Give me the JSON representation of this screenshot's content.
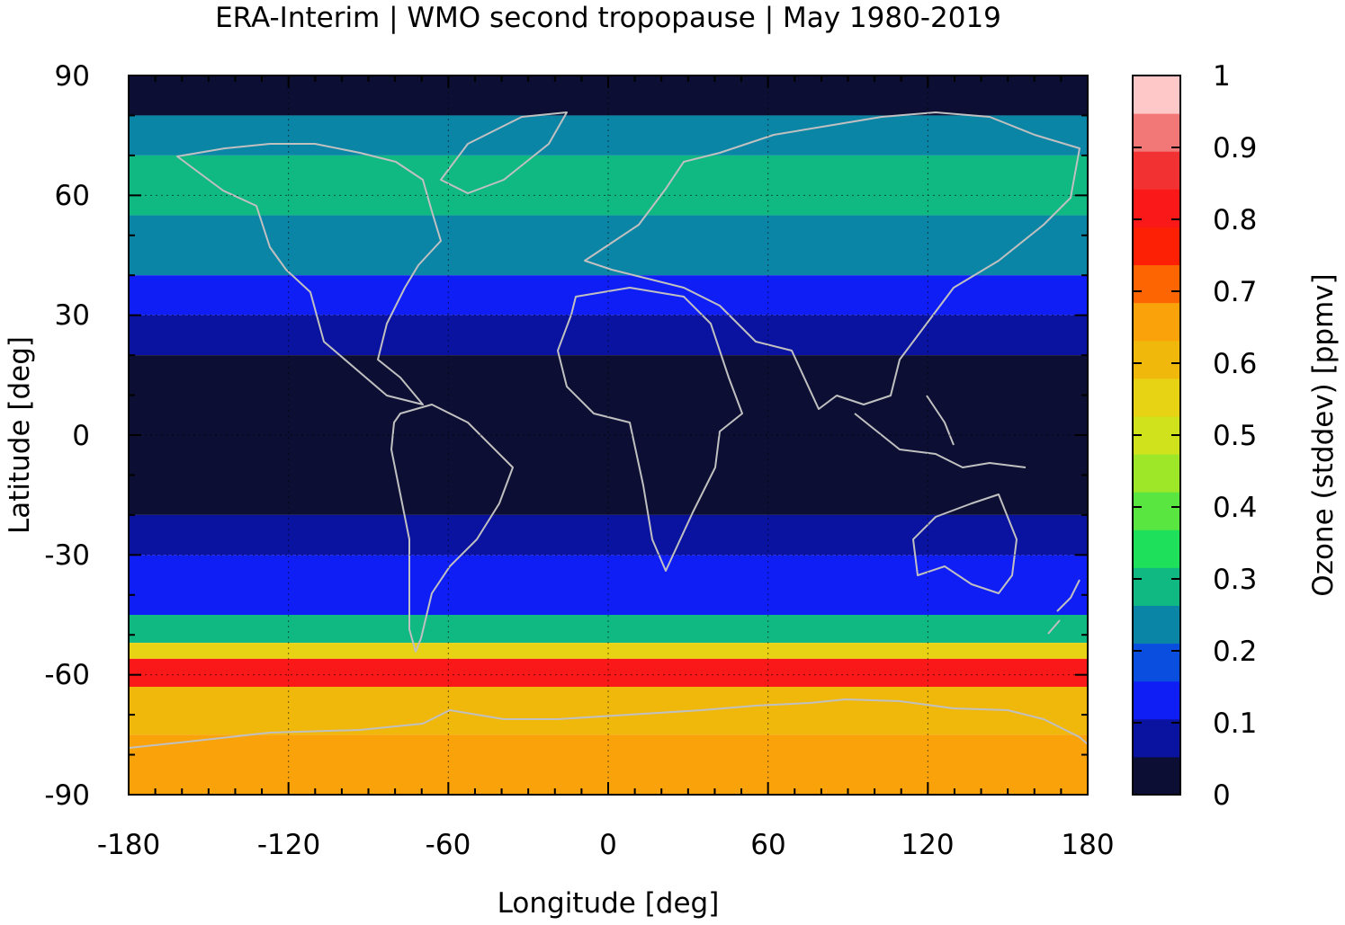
{
  "chart_data": {
    "type": "heatmap",
    "title": "ERA-Interim | WMO second tropopause | May 1980-2019",
    "xlabel": "Longitude [deg]",
    "ylabel": "Latitude [deg]",
    "xlim": [
      -180,
      180
    ],
    "ylim": [
      -90,
      90
    ],
    "xticks": [
      "-180",
      "-120",
      "-60",
      "0",
      "60",
      "120",
      "180"
    ],
    "yticks": [
      "90",
      "60",
      "30",
      "0",
      "-30",
      "-60",
      "-90"
    ],
    "grid": true,
    "colorbar": {
      "label": "Ozone (stddev) [ppmv]",
      "range": [
        0,
        1
      ],
      "tick_labels": [
        "1",
        "0.9",
        "0.8",
        "0.7",
        "0.6",
        "0.5",
        "0.4",
        "0.3",
        "0.2",
        "0.1",
        "0"
      ],
      "levels": [
        "#0c0f33",
        "#0a12a0",
        "#0f1ef5",
        "#0a4ee0",
        "#0a85a6",
        "#10b882",
        "#1ee05a",
        "#5ae640",
        "#9ee628",
        "#cfe21c",
        "#e8d214",
        "#f1b80c",
        "#f9a20a",
        "#fd6402",
        "#fd2004",
        "#fa1818",
        "#f23232",
        "#f27878",
        "#ffc8c8"
      ],
      "placement": "right"
    },
    "lat_bands": [
      {
        "lat": [
          80,
          90
        ],
        "value": 0.02
      },
      {
        "lat": [
          70,
          80
        ],
        "value": 0.22
      },
      {
        "lat": [
          55,
          70
        ],
        "value": 0.3
      },
      {
        "lat": [
          40,
          55
        ],
        "value": 0.25
      },
      {
        "lat": [
          30,
          40
        ],
        "value": 0.15
      },
      {
        "lat": [
          20,
          30
        ],
        "value": 0.1
      },
      {
        "lat": [
          -20,
          20
        ],
        "value": 0.02
      },
      {
        "lat": [
          -30,
          -20
        ],
        "value": 0.07
      },
      {
        "lat": [
          -45,
          -30
        ],
        "value": 0.12
      },
      {
        "lat": [
          -52,
          -45
        ],
        "value": 0.3
      },
      {
        "lat": [
          -56,
          -52
        ],
        "value": 0.55
      },
      {
        "lat": [
          -63,
          -56
        ],
        "value": 0.82
      },
      {
        "lat": [
          -75,
          -63
        ],
        "value": 0.62
      },
      {
        "lat": [
          -90,
          -75
        ],
        "value": 0.65
      }
    ],
    "overlay": "coastlines"
  }
}
